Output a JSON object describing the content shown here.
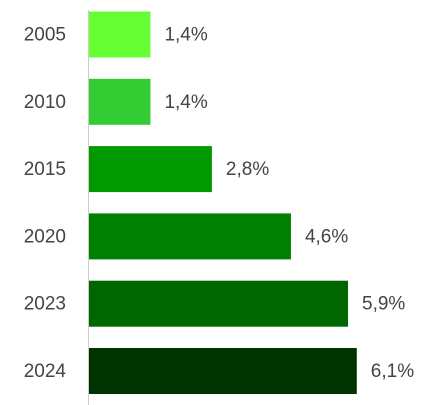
{
  "chart_data": {
    "type": "bar",
    "orientation": "horizontal",
    "categories": [
      "2005",
      "2010",
      "2015",
      "2020",
      "2023",
      "2024"
    ],
    "values": [
      1.4,
      1.4,
      2.8,
      4.6,
      5.9,
      6.1
    ],
    "value_labels": [
      "1,4%",
      "1,4%",
      "2,8%",
      "4,6%",
      "5,9%",
      "6,1%"
    ],
    "colors": [
      "#66ff33",
      "#33cc33",
      "#009900",
      "#008000",
      "#006600",
      "#003300"
    ]
  }
}
